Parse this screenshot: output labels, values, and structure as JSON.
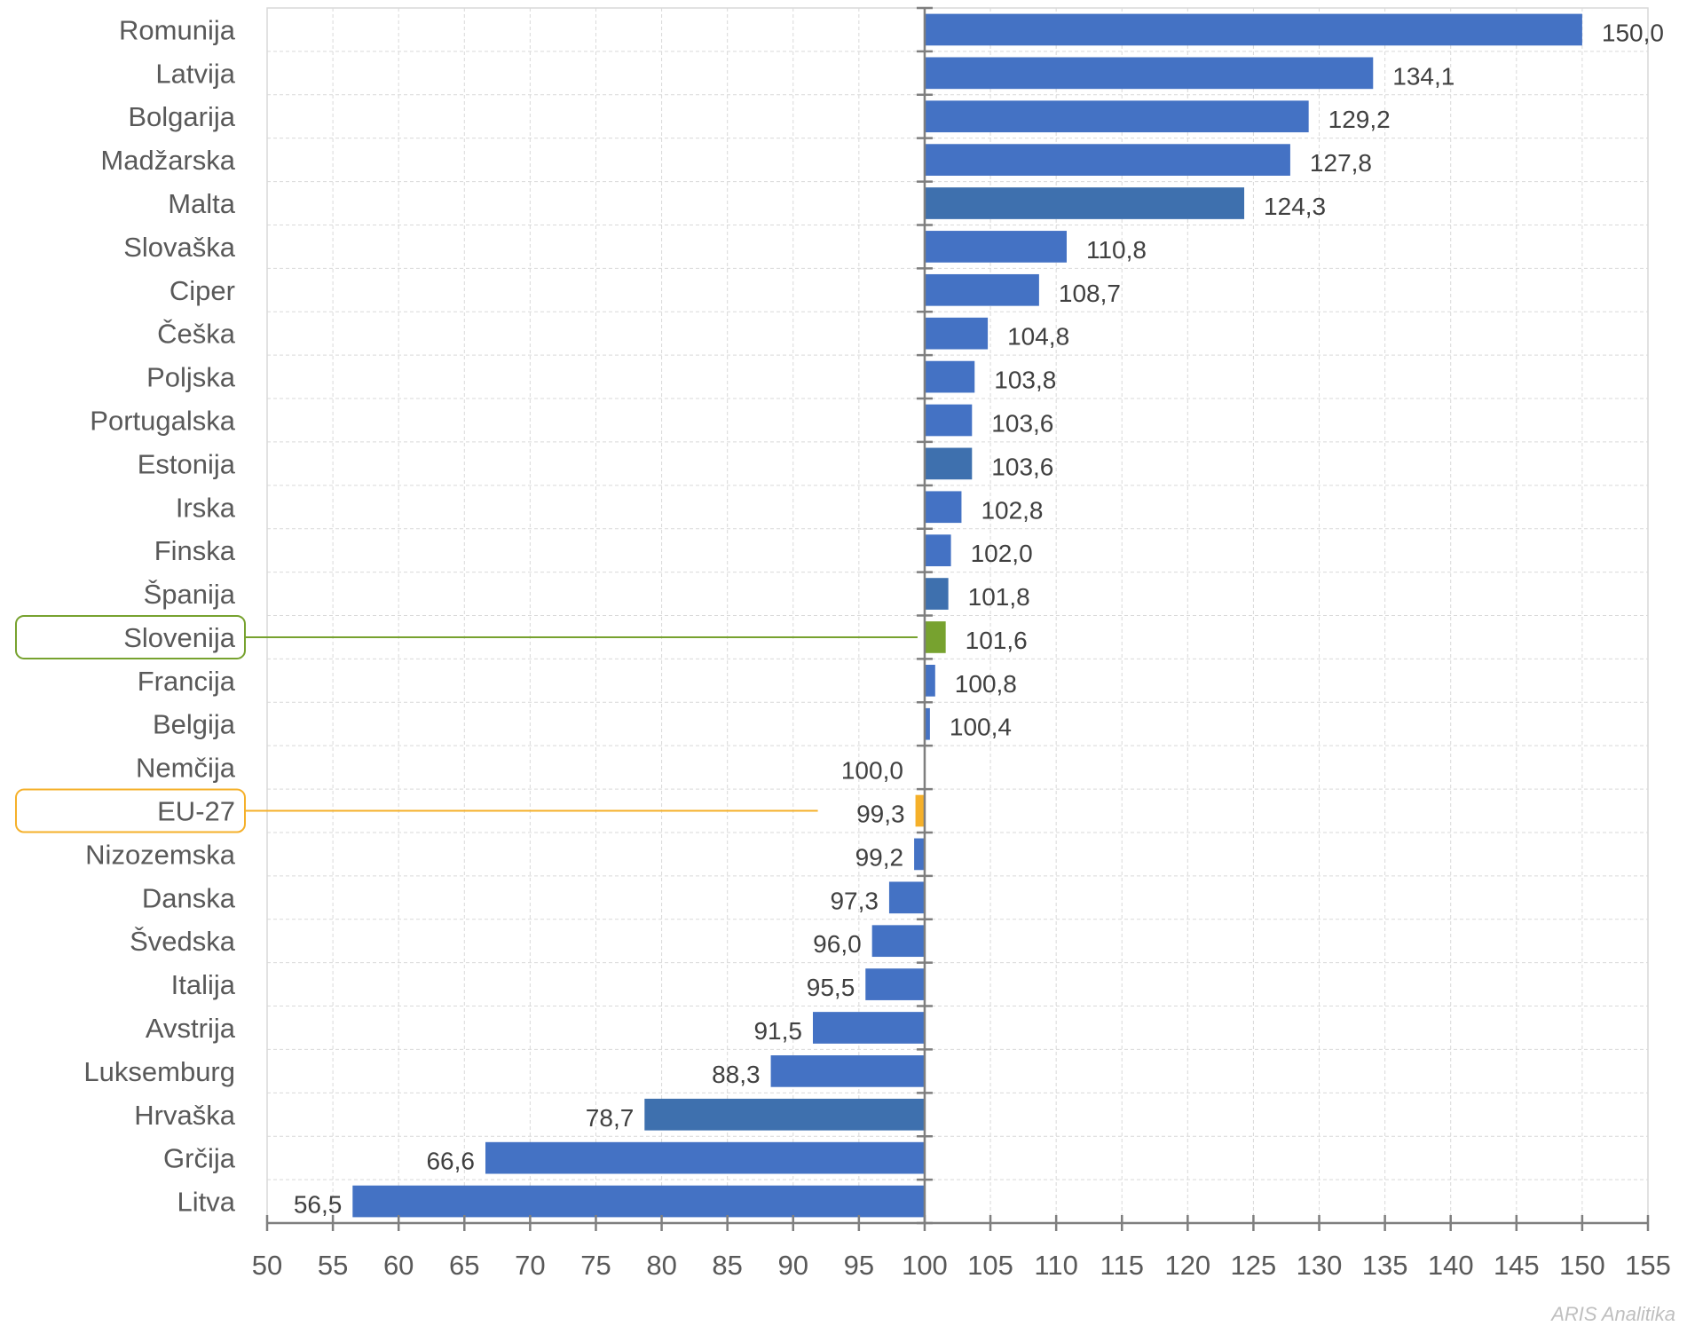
{
  "chart_data": {
    "type": "bar",
    "orientation": "horizontal",
    "baseline": 100,
    "categories": [
      "Romunija",
      "Latvija",
      "Bolgarija",
      "Madžarska",
      "Malta",
      "Slovaška",
      "Ciper",
      "Češka",
      "Poljska",
      "Portugalska",
      "Estonija",
      "Irska",
      "Finska",
      "Španija",
      "Slovenija",
      "Francija",
      "Belgija",
      "Nemčija",
      "EU-27",
      "Nizozemska",
      "Danska",
      "Švedska",
      "Italija",
      "Avstrija",
      "Luksemburg",
      "Hrvaška",
      "Grčija",
      "Litva"
    ],
    "values": [
      150.0,
      134.1,
      129.2,
      127.8,
      124.3,
      110.8,
      108.7,
      104.8,
      103.8,
      103.6,
      103.6,
      102.8,
      102.0,
      101.8,
      101.6,
      100.8,
      100.4,
      100.0,
      99.3,
      99.2,
      97.3,
      96.0,
      95.5,
      91.5,
      88.3,
      78.7,
      66.6,
      56.5
    ],
    "value_labels": [
      "150,0",
      "134,1",
      "129,2",
      "127,8",
      "124,3",
      "110,8",
      "108,7",
      "104,8",
      "103,8",
      "103,6",
      "103,6",
      "102,8",
      "102,0",
      "101,8",
      "101,6",
      "100,8",
      "100,4",
      "100,0",
      "99,3",
      "99,2",
      "97,3",
      "96,0",
      "95,5",
      "91,5",
      "88,3",
      "78,7",
      "66,6",
      "56,5"
    ],
    "bar_colors": {
      "default": "#4472C4",
      "dark": "#3E70AE",
      "Slovenija": "#77A22F",
      "EU-27": "#F5B02A"
    },
    "dark_bars": [
      "Malta",
      "Estonija",
      "Španija",
      "Hrvaška"
    ],
    "highlighted": [
      {
        "category": "Slovenija",
        "color": "#77A22F"
      },
      {
        "category": "EU-27",
        "color": "#F5B02A"
      }
    ],
    "xlim": [
      50,
      155
    ],
    "xticks": [
      50,
      55,
      60,
      65,
      70,
      75,
      80,
      85,
      90,
      95,
      100,
      105,
      110,
      115,
      120,
      125,
      130,
      135,
      140,
      145,
      150,
      155
    ],
    "grid": true,
    "title": "",
    "xlabel": "",
    "ylabel": ""
  },
  "watermark": "ARIS Analitika"
}
